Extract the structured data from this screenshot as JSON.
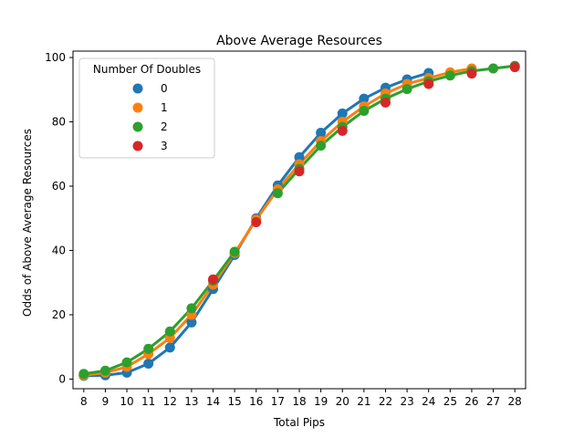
{
  "chart_data": {
    "type": "line",
    "title": "Above Average Resources",
    "xlabel": "Total Pips",
    "ylabel": "Odds of Above Average Resources",
    "categories": [
      8,
      9,
      10,
      11,
      12,
      13,
      14,
      15,
      16,
      17,
      18,
      19,
      20,
      21,
      22,
      23,
      24,
      25,
      26,
      27,
      28
    ],
    "ylim": [
      -3,
      102
    ],
    "yticks": [
      0,
      20,
      40,
      60,
      80,
      100
    ],
    "legend": {
      "title": "Number Of Doubles",
      "placement": "upper-left"
    },
    "series": [
      {
        "name": "0",
        "color": "#1f77b4",
        "values": [
          1.0,
          1.2,
          2.0,
          4.8,
          9.8,
          17.6,
          28.0,
          38.6,
          50.0,
          60.2,
          69.0,
          76.6,
          82.6,
          87.2,
          90.6,
          93.2,
          95.2,
          null,
          null,
          null,
          null
        ]
      },
      {
        "name": "1",
        "color": "#ff7f0e",
        "values": [
          1.2,
          2.0,
          3.8,
          7.8,
          12.8,
          20.0,
          29.4,
          39.2,
          49.6,
          59.0,
          66.8,
          74.0,
          80.0,
          84.8,
          88.8,
          91.8,
          93.6,
          95.4,
          96.6,
          null,
          null
        ]
      },
      {
        "name": "2",
        "color": "#2ca02c",
        "values": [
          1.6,
          2.6,
          5.2,
          9.4,
          14.8,
          22.0,
          30.6,
          39.6,
          null,
          57.8,
          65.4,
          72.6,
          78.4,
          83.4,
          87.2,
          90.2,
          92.6,
          94.4,
          95.8,
          96.6,
          97.4
        ]
      },
      {
        "name": "3",
        "color": "#d62728",
        "values": [
          null,
          null,
          null,
          null,
          null,
          null,
          31.0,
          null,
          48.8,
          null,
          64.6,
          null,
          77.2,
          null,
          86.0,
          null,
          91.8,
          null,
          95.0,
          null,
          97.0
        ]
      }
    ]
  }
}
